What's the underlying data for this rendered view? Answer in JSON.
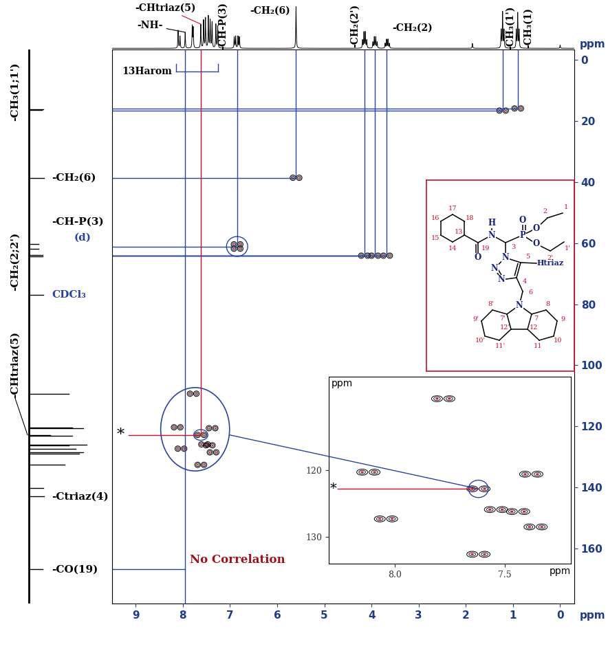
{
  "chart_data": {
    "type": "hsqc",
    "xlabel": "ppm",
    "ylabel": "ppm",
    "xlim": [
      9.5,
      -0.3
    ],
    "xticks": [
      9,
      8,
      7,
      6,
      5,
      4,
      3,
      2,
      1,
      0
    ],
    "ylim": [
      178,
      -3.4
    ],
    "yticks": [
      0,
      20,
      40,
      60,
      80,
      100,
      120,
      140,
      160
    ],
    "proton_spectrum": {
      "shifts": [
        7.95,
        8.1,
        8.06,
        7.8,
        7.78,
        7.62,
        7.56,
        7.52,
        7.46,
        7.42,
        7.38,
        7.3,
        7.26,
        6.91,
        6.88,
        6.83,
        6.8,
        5.6,
        4.19,
        4.16,
        4.13,
        4.1,
        3.97,
        3.94,
        3.91,
        3.88,
        3.71,
        3.68,
        3.65,
        3.62,
        1.86,
        1.25,
        1.22,
        1.19,
        0.93,
        0.9,
        0.87,
        0.0
      ],
      "intensities": [
        40,
        45,
        30,
        55,
        50,
        60,
        70,
        75,
        80,
        70,
        65,
        60,
        55,
        28,
        30,
        30,
        28,
        105,
        20,
        40,
        40,
        20,
        15,
        28,
        28,
        15,
        12,
        22,
        22,
        12,
        12,
        45,
        90,
        45,
        45,
        88,
        45,
        8
      ],
      "intensity_range": [
        -3,
        118
      ]
    },
    "carbon_spectrum": {
      "shifts": [
        16.2,
        16.5,
        38.6,
        60.4,
        61.8,
        63.9,
        64.3,
        77.0,
        109.3,
        120.3,
        120.6,
        122.8,
        123.1,
        125.9,
        126.2,
        127.3,
        128.5,
        128.9,
        132.6,
        140.1,
        143.0,
        166.8
      ],
      "intensities": [
        40,
        36,
        42,
        28,
        28,
        38,
        38,
        40,
        110,
        120,
        150,
        60,
        120,
        160,
        110,
        130,
        150,
        140,
        100,
        40,
        42,
        38
      ],
      "intensity_range": [
        -3,
        230
      ]
    },
    "proton_labels": [
      {
        "text": "-NH-",
        "ppm": 7.95
      },
      {
        "text": "-CHtriaz(5)",
        "ppm": 7.62
      },
      {
        "text": "-CH-P(3)",
        "ppm": 6.85
      },
      {
        "text": "-CH₂(6)",
        "ppm": 5.6
      },
      {
        "text": "-CH₂(2')",
        "ppm": 4.15
      },
      {
        "text": "-CH₂(2)",
        "ppm": 3.68
      },
      {
        "text": "-CH₃(1')",
        "ppm": 1.22
      },
      {
        "text": "-CH₃(1)",
        "ppm": 0.9
      }
    ],
    "carbon_labels": [
      {
        "text": "-CH₃(1;1')",
        "ppm": 16.3
      },
      {
        "text": "-CH₂(6)",
        "ppm": 38.6
      },
      {
        "text": "-CH-P(3)",
        "ppm": 61.1
      },
      {
        "text": "(d)",
        "ppm": 61.1
      },
      {
        "text": "-CH₂(2;2')",
        "ppm": 64.1
      },
      {
        "text": "CDCl₃",
        "ppm": 77.0
      },
      {
        "text": "-CHtriaz(5)",
        "ppm": 122.8
      },
      {
        "text": "-Ctriaz(4)",
        "ppm": 143.0
      },
      {
        "text": "-CO(19)",
        "ppm": 166.8
      }
    ],
    "cross_peaks": [
      [
        1.22,
        16.6
      ],
      [
        0.9,
        15.9
      ],
      [
        5.6,
        38.6
      ],
      [
        6.85,
        60.4
      ],
      [
        6.85,
        61.8
      ],
      [
        4.15,
        64.1
      ],
      [
        3.93,
        64.1
      ],
      [
        3.68,
        64.1
      ],
      [
        7.78,
        109.3
      ],
      [
        8.12,
        120.3
      ],
      [
        7.38,
        120.6
      ],
      [
        7.62,
        122.8
      ],
      [
        7.54,
        125.9
      ],
      [
        7.44,
        126.2
      ],
      [
        8.04,
        127.3
      ],
      [
        7.36,
        128.5
      ],
      [
        7.62,
        132.6
      ]
    ],
    "links": [
      [
        1.22,
        16.6
      ],
      [
        0.9,
        15.9
      ],
      [
        5.6,
        38.6
      ],
      [
        6.85,
        61.1
      ],
      [
        4.15,
        64.1
      ],
      [
        3.93,
        64.1
      ],
      [
        3.68,
        64.1
      ]
    ],
    "aromatic_bracket": {
      "text": "13Harom",
      "from": 8.15,
      "to": 7.25
    },
    "highlight": {
      "h": 7.62,
      "c": 122.8,
      "text": "*"
    },
    "no_correlation": {
      "h": 7.95,
      "c": 166.8,
      "text": "No Correlation"
    },
    "inset": {
      "xlim": [
        8.3,
        7.2
      ],
      "xticks": [
        8.0,
        7.5
      ],
      "ylim": [
        134,
        106
      ],
      "yticks": [
        120,
        130
      ],
      "xlabel": "ppm",
      "ylabel": "ppm"
    }
  },
  "structure": {
    "atom_numbers": [
      "1",
      "2",
      "2'",
      "1'",
      "3",
      "4",
      "5",
      "6",
      "7",
      "8",
      "9",
      "10",
      "11",
      "12",
      "12'",
      "11'",
      "10'",
      "9'",
      "8'",
      "7'",
      "13",
      "14",
      "15",
      "16",
      "17",
      "18",
      "19"
    ],
    "atoms": [
      "H",
      "N",
      "O",
      "P",
      "O",
      "O",
      "O",
      "N",
      "N",
      "N",
      "N"
    ],
    "triazole_h": "Htriaz"
  }
}
